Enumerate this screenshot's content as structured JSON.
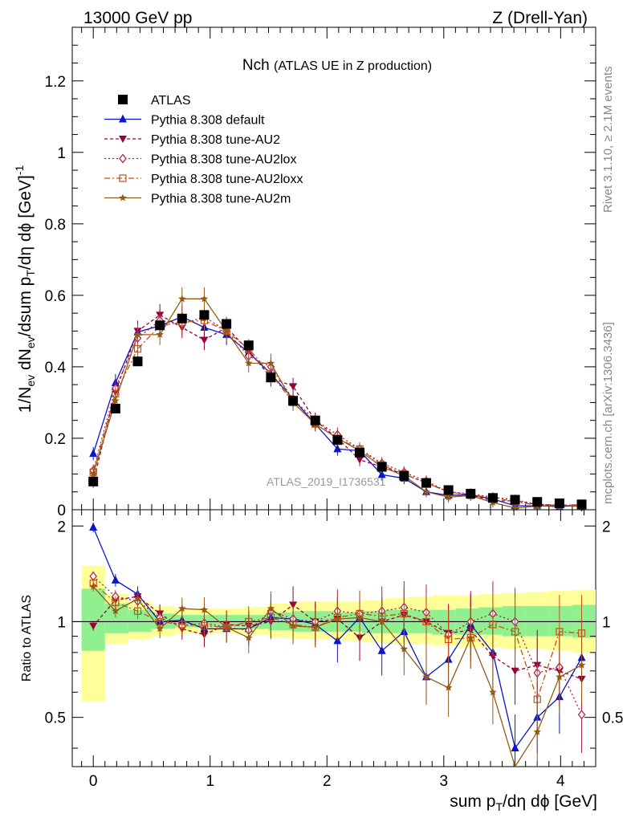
{
  "header": {
    "left": "13000 GeV pp",
    "right": "Z (Drell-Yan)"
  },
  "side_labels": {
    "rivet": "Rivet 3.1.10, ≥ 2.1M events",
    "mcplots": "mcplots.cern.ch [arXiv:1306.3436]"
  },
  "plot_title": {
    "main": "Nch",
    "sub": "(ATLAS UE in Z production)"
  },
  "watermark": "ATLAS_2019_I1736531",
  "colors": {
    "atlas": "#000000",
    "default": "#0a14c8",
    "au2": "#96003c",
    "au2lox": "#aa1e46",
    "au2loxx": "#c85014",
    "au2m": "#965a14",
    "band_inner": "#90f090",
    "band_outer": "#ffff99"
  },
  "chart_data": [
    {
      "type": "line",
      "title": "Nch (ATLAS UE in Z production)",
      "xlabel": "sum pT/dη dϕ [GeV]",
      "ylabel": "1/Nev dNev/dsum pT/dη dϕ [GeV]^-1",
      "xlim": [
        -0.18,
        4.3
      ],
      "ylim": [
        0,
        1.35
      ],
      "x_ticks": [
        "0",
        "1",
        "2",
        "3",
        "4"
      ],
      "y_ticks": [
        "0",
        "0.2",
        "0.4",
        "0.6",
        "0.8",
        "1",
        "1.2"
      ],
      "legend_position": "top-left",
      "x": [
        0.0,
        0.19,
        0.38,
        0.57,
        0.76,
        0.95,
        1.14,
        1.33,
        1.52,
        1.71,
        1.9,
        2.09,
        2.28,
        2.47,
        2.66,
        2.85,
        3.04,
        3.23,
        3.42,
        3.61,
        3.8,
        3.99,
        4.18
      ],
      "series": [
        {
          "name": "ATLAS",
          "values": [
            0.079,
            0.283,
            0.415,
            0.516,
            0.535,
            0.545,
            0.52,
            0.46,
            0.37,
            0.305,
            0.25,
            0.195,
            0.16,
            0.12,
            0.095,
            0.075,
            0.055,
            0.045,
            0.033,
            0.028,
            0.022,
            0.018,
            0.015
          ]
        },
        {
          "name": "Pythia 8.308 default",
          "values": [
            0.157,
            0.355,
            0.497,
            0.515,
            0.54,
            0.51,
            0.49,
            0.44,
            0.38,
            0.31,
            0.24,
            0.17,
            0.165,
            0.098,
            0.088,
            0.05,
            0.04,
            0.042,
            0.03,
            0.011,
            0.011,
            0.009,
            0.012
          ]
        },
        {
          "name": "Pythia 8.308 tune-AU2",
          "values": [
            0.077,
            0.33,
            0.5,
            0.545,
            0.51,
            0.475,
            0.51,
            0.445,
            0.37,
            0.345,
            0.25,
            0.2,
            0.14,
            0.12,
            0.1,
            0.075,
            0.05,
            0.042,
            0.025,
            0.025,
            0.015,
            0.012,
            0.01
          ]
        },
        {
          "name": "Pythia 8.308 tune-AU2lox",
          "values": [
            0.11,
            0.34,
            0.48,
            0.53,
            0.52,
            0.54,
            0.5,
            0.43,
            0.4,
            0.31,
            0.25,
            0.21,
            0.17,
            0.13,
            0.105,
            0.08,
            0.05,
            0.045,
            0.035,
            0.028,
            0.015,
            0.013,
            0.008
          ]
        },
        {
          "name": "Pythia 8.308 tune-AU2loxx",
          "values": [
            0.105,
            0.325,
            0.45,
            0.515,
            0.525,
            0.53,
            0.5,
            0.45,
            0.38,
            0.3,
            0.24,
            0.2,
            0.17,
            0.125,
            0.1,
            0.075,
            0.05,
            0.04,
            0.035,
            0.022,
            0.013,
            0.013,
            0.014
          ]
        },
        {
          "name": "Pythia 8.308 tune-AU2m",
          "values": [
            0.1,
            0.305,
            0.49,
            0.49,
            0.59,
            0.59,
            0.5,
            0.41,
            0.41,
            0.3,
            0.24,
            0.2,
            0.165,
            0.12,
            0.095,
            0.05,
            0.035,
            0.04,
            0.02,
            0.005,
            0.01,
            0.012,
            0.011
          ]
        }
      ]
    },
    {
      "type": "line",
      "ylabel": "Ratio to ATLAS",
      "xlabel": "sum pT/dη dϕ [GeV]",
      "xlim": [
        -0.18,
        4.3
      ],
      "ylim": [
        0.35,
        2.25
      ],
      "y_ticks": [
        "0.5",
        "1",
        "2"
      ],
      "x": [
        0.0,
        0.19,
        0.38,
        0.57,
        0.76,
        0.95,
        1.14,
        1.33,
        1.52,
        1.71,
        1.9,
        2.09,
        2.28,
        2.47,
        2.66,
        2.85,
        3.04,
        3.23,
        3.42,
        3.61,
        3.8,
        3.99,
        4.18
      ],
      "band_edges": [
        -0.1,
        0.1,
        0.3,
        0.5,
        0.7,
        0.9,
        1.1,
        1.3,
        1.5,
        1.7,
        1.9,
        2.1,
        2.3,
        2.5,
        2.7,
        2.9,
        3.1,
        3.3,
        3.5,
        3.7,
        3.9,
        4.1,
        4.3
      ],
      "band_inner": [
        [
          0.81,
          1.27
        ],
        [
          0.92,
          1.14
        ],
        [
          0.93,
          1.09
        ],
        [
          0.95,
          1.06
        ],
        [
          0.96,
          1.05
        ],
        [
          0.96,
          1.05
        ],
        [
          0.96,
          1.05
        ],
        [
          0.95,
          1.05
        ],
        [
          0.94,
          1.07
        ],
        [
          0.93,
          1.08
        ],
        [
          0.93,
          1.08
        ],
        [
          0.93,
          1.07
        ],
        [
          0.92,
          1.08
        ],
        [
          0.92,
          1.09
        ],
        [
          0.92,
          1.09
        ],
        [
          0.91,
          1.09
        ],
        [
          0.91,
          1.1
        ],
        [
          0.91,
          1.11
        ],
        [
          0.9,
          1.12
        ],
        [
          0.9,
          1.12
        ],
        [
          0.9,
          1.12
        ],
        [
          0.89,
          1.13
        ]
      ],
      "band_outer": [
        [
          0.56,
          1.5
        ],
        [
          0.85,
          1.22
        ],
        [
          0.88,
          1.16
        ],
        [
          0.9,
          1.12
        ],
        [
          0.92,
          1.1
        ],
        [
          0.92,
          1.1
        ],
        [
          0.92,
          1.1
        ],
        [
          0.91,
          1.11
        ],
        [
          0.89,
          1.14
        ],
        [
          0.88,
          1.16
        ],
        [
          0.88,
          1.16
        ],
        [
          0.87,
          1.16
        ],
        [
          0.86,
          1.17
        ],
        [
          0.85,
          1.19
        ],
        [
          0.85,
          1.2
        ],
        [
          0.84,
          1.21
        ],
        [
          0.83,
          1.21
        ],
        [
          0.83,
          1.22
        ],
        [
          0.82,
          1.23
        ],
        [
          0.82,
          1.24
        ],
        [
          0.81,
          1.25
        ],
        [
          0.8,
          1.26
        ]
      ],
      "series": [
        {
          "name": "Pythia 8.308 default",
          "values": [
            1.98,
            1.35,
            1.22,
            1.0,
            1.01,
            0.95,
            0.95,
            0.95,
            1.03,
            1.02,
            0.98,
            0.87,
            1.03,
            0.81,
            0.93,
            0.67,
            0.76,
            0.98,
            0.8,
            0.4,
            0.5,
            0.58,
            0.77
          ]
        },
        {
          "name": "Pythia 8.308 tune-AU2",
          "values": [
            0.97,
            1.17,
            1.2,
            1.06,
            0.95,
            0.91,
            0.98,
            0.97,
            1.0,
            1.13,
            1.0,
            1.02,
            0.89,
            1.0,
            1.05,
            1.0,
            0.92,
            0.94,
            0.78,
            0.7,
            0.73,
            0.7,
            0.66
          ]
        },
        {
          "name": "Pythia 8.308 tune-AU2lox",
          "values": [
            1.39,
            1.2,
            1.16,
            1.03,
            0.97,
            0.99,
            0.96,
            0.94,
            1.08,
            1.02,
            1.0,
            1.08,
            1.06,
            1.08,
            1.11,
            1.07,
            0.91,
            1.0,
            1.06,
            1.0,
            0.69,
            0.72,
            0.51
          ]
        },
        {
          "name": "Pythia 8.308 tune-AU2loxx",
          "values": [
            1.32,
            1.15,
            1.08,
            1.0,
            0.98,
            0.97,
            0.96,
            1.0,
            1.03,
            0.98,
            0.96,
            1.03,
            1.06,
            1.04,
            1.06,
            1.0,
            0.88,
            0.89,
            0.98,
            0.93,
            0.57,
            0.93,
            0.92
          ]
        },
        {
          "name": "Pythia 8.308 tune-AU2m",
          "values": [
            1.29,
            1.08,
            1.18,
            0.95,
            1.1,
            1.09,
            0.96,
            0.89,
            1.1,
            0.97,
            0.96,
            1.02,
            1.03,
            1.0,
            0.82,
            0.67,
            0.62,
            0.89,
            0.6,
            0.18,
            0.45,
            0.67,
            0.73
          ]
        }
      ]
    }
  ]
}
